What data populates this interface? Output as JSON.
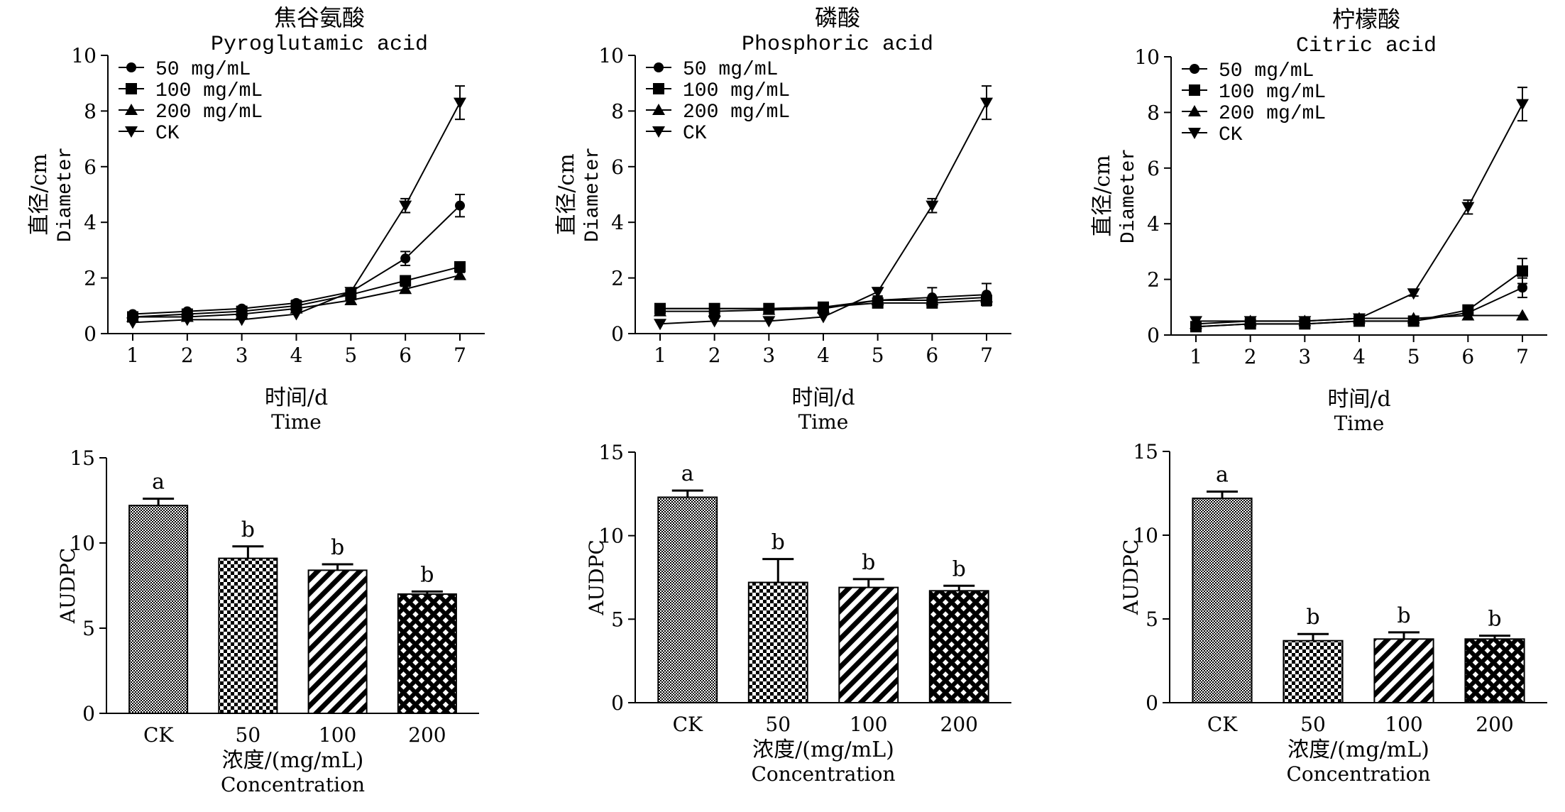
{
  "chart_data": [
    {
      "type": "line",
      "title": "焦谷氨酸",
      "subtitle": "Pyroglutamic acid",
      "xlabel": "时间/d",
      "xlabel_en": "Time",
      "ylabel": "直径/cm",
      "ylabel_en": "Diameter",
      "ylim": [
        0,
        10
      ],
      "yticks": [
        0,
        2,
        4,
        6,
        8,
        10
      ],
      "x": [
        1,
        2,
        3,
        4,
        5,
        6,
        7
      ],
      "legend_position": "top-left",
      "series": [
        {
          "name": "50 mg/mL",
          "marker": "circle",
          "values": [
            0.7,
            0.8,
            0.9,
            1.1,
            1.5,
            2.7,
            4.6
          ],
          "err": [
            0.05,
            0.05,
            0.05,
            0.1,
            0.1,
            0.25,
            0.4
          ]
        },
        {
          "name": "100 mg/mL",
          "marker": "square",
          "values": [
            0.6,
            0.7,
            0.8,
            1.0,
            1.4,
            1.9,
            2.4
          ],
          "err": [
            0.05,
            0.05,
            0.05,
            0.08,
            0.1,
            0.1,
            0.15
          ]
        },
        {
          "name": "200 mg/mL",
          "marker": "triangle-up",
          "values": [
            0.6,
            0.6,
            0.7,
            0.9,
            1.2,
            1.6,
            2.1
          ],
          "err": [
            0.05,
            0.05,
            0.05,
            0.05,
            0.1,
            0.1,
            0.1
          ]
        },
        {
          "name": "CK",
          "marker": "triangle-down",
          "values": [
            0.4,
            0.5,
            0.5,
            0.7,
            1.5,
            4.6,
            8.3
          ],
          "err": [
            0.05,
            0.05,
            0.05,
            0.05,
            0.1,
            0.25,
            0.6
          ]
        }
      ]
    },
    {
      "type": "line",
      "title": "磷酸",
      "subtitle": "Phosphoric acid",
      "xlabel": "时间/d",
      "xlabel_en": "Time",
      "ylabel": "直径/cm",
      "ylabel_en": "Diameter",
      "ylim": [
        0,
        10
      ],
      "yticks": [
        0,
        2,
        4,
        6,
        8,
        10
      ],
      "x": [
        1,
        2,
        3,
        4,
        5,
        6,
        7
      ],
      "legend_position": "top-left",
      "series": [
        {
          "name": "50 mg/mL",
          "marker": "circle",
          "values": [
            0.9,
            0.9,
            0.9,
            0.95,
            1.2,
            1.3,
            1.4
          ],
          "err": [
            0.05,
            0.05,
            0.05,
            0.05,
            0.15,
            0.35,
            0.4
          ]
        },
        {
          "name": "100 mg/mL",
          "marker": "square",
          "values": [
            0.9,
            0.9,
            0.9,
            0.95,
            1.1,
            1.1,
            1.2
          ],
          "err": [
            0.05,
            0.05,
            0.05,
            0.05,
            0.1,
            0.1,
            0.15
          ]
        },
        {
          "name": "200 mg/mL",
          "marker": "triangle-up",
          "values": [
            0.8,
            0.8,
            0.85,
            0.9,
            1.2,
            1.2,
            1.3
          ],
          "err": [
            0.05,
            0.05,
            0.05,
            0.05,
            0.1,
            0.1,
            0.1
          ]
        },
        {
          "name": "CK",
          "marker": "triangle-down",
          "values": [
            0.35,
            0.45,
            0.45,
            0.6,
            1.5,
            4.6,
            8.3
          ],
          "err": [
            0.05,
            0.05,
            0.05,
            0.05,
            0.15,
            0.25,
            0.6
          ]
        }
      ]
    },
    {
      "type": "line",
      "title": "柠檬酸",
      "subtitle": "Citric acid",
      "xlabel": "时间/d",
      "xlabel_en": "Time",
      "ylabel": "直径/cm",
      "ylabel_en": "Diameter",
      "ylim": [
        0,
        10
      ],
      "yticks": [
        0,
        2,
        4,
        6,
        8,
        10
      ],
      "x": [
        1,
        2,
        3,
        4,
        5,
        6,
        7
      ],
      "legend_position": "top-left",
      "series": [
        {
          "name": "50 mg/mL",
          "marker": "circle",
          "values": [
            0.3,
            0.4,
            0.4,
            0.5,
            0.5,
            0.8,
            1.7
          ],
          "err": [
            0.05,
            0.05,
            0.05,
            0.05,
            0.05,
            0.1,
            0.35
          ]
        },
        {
          "name": "100 mg/mL",
          "marker": "square",
          "values": [
            0.3,
            0.4,
            0.4,
            0.5,
            0.5,
            0.9,
            2.3
          ],
          "err": [
            0.05,
            0.05,
            0.05,
            0.05,
            0.05,
            0.1,
            0.45
          ]
        },
        {
          "name": "200 mg/mL",
          "marker": "triangle-up",
          "values": [
            0.4,
            0.5,
            0.5,
            0.6,
            0.6,
            0.7,
            0.7
          ],
          "err": [
            0.05,
            0.05,
            0.05,
            0.05,
            0.05,
            0.05,
            0.05
          ]
        },
        {
          "name": "CK",
          "marker": "triangle-down",
          "values": [
            0.5,
            0.5,
            0.5,
            0.6,
            1.5,
            4.6,
            8.3
          ],
          "err": [
            0.05,
            0.05,
            0.05,
            0.05,
            0.1,
            0.25,
            0.6
          ]
        }
      ]
    },
    {
      "type": "bar",
      "ylabel": "AUDPC",
      "xlabel": "浓度/(mg/mL)",
      "xlabel_en": "Concentration",
      "ylim": [
        0,
        15
      ],
      "yticks": [
        0,
        5,
        10,
        15
      ],
      "categories": [
        "CK",
        "50",
        "100",
        "200"
      ],
      "values": [
        12.2,
        9.1,
        8.4,
        7.0
      ],
      "err": [
        0.4,
        0.7,
        0.35,
        0.15
      ],
      "letters": [
        "a",
        "b",
        "b",
        "b"
      ],
      "patterns": [
        "fine-dots",
        "checker",
        "diagonal-stripes",
        "diamond"
      ]
    },
    {
      "type": "bar",
      "ylabel": "AUDPC",
      "xlabel": "浓度/(mg/mL)",
      "xlabel_en": "Concentration",
      "ylim": [
        0,
        15
      ],
      "yticks": [
        0,
        5,
        10,
        15
      ],
      "categories": [
        "CK",
        "50",
        "100",
        "200"
      ],
      "values": [
        12.3,
        7.2,
        6.9,
        6.7
      ],
      "err": [
        0.4,
        1.4,
        0.5,
        0.3
      ],
      "letters": [
        "a",
        "b",
        "b",
        "b"
      ],
      "patterns": [
        "fine-dots",
        "checker",
        "diagonal-stripes",
        "diamond"
      ]
    },
    {
      "type": "bar",
      "ylabel": "AUDPC",
      "xlabel": "浓度/(mg/mL)",
      "xlabel_en": "Concentration",
      "ylim": [
        0,
        15
      ],
      "yticks": [
        0,
        5,
        10,
        15
      ],
      "categories": [
        "CK",
        "50",
        "100",
        "200"
      ],
      "values": [
        12.2,
        3.7,
        3.8,
        3.8
      ],
      "err": [
        0.4,
        0.4,
        0.4,
        0.2
      ],
      "letters": [
        "a",
        "b",
        "b",
        "b"
      ],
      "patterns": [
        "fine-dots",
        "checker",
        "diagonal-stripes",
        "diamond"
      ]
    }
  ]
}
